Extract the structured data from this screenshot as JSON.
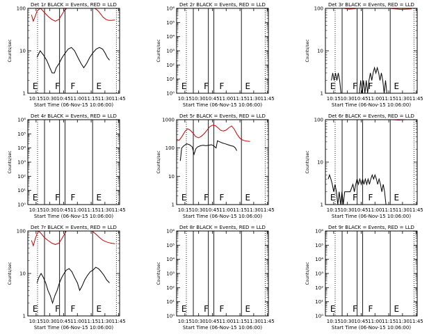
{
  "figure": {
    "xlabel": "Start Time (06-Nov-15 10:06:00)",
    "ylabel": "Counts/sec",
    "x_ticks": [
      "10:15",
      "10:30",
      "10:45",
      "11:00",
      "11:15",
      "11:30",
      "11:45"
    ]
  },
  "colors": {
    "events": "#000000",
    "lld": "#cc0000",
    "axes": "#000000",
    "background": "#ffffff"
  },
  "chart_data": [
    {
      "title": "Det 1r BLACK = Events, RED = LLD",
      "type": "line",
      "ylog": true,
      "ylim": [
        1,
        100
      ],
      "y_ticks": [
        "1",
        "10",
        "100"
      ],
      "events": [
        [
          10.0,
          7
        ],
        [
          13.5,
          10
        ],
        [
          17.0,
          8
        ],
        [
          20.5,
          6
        ],
        [
          24.0,
          4
        ],
        [
          26.5,
          3
        ],
        [
          29.0,
          3
        ],
        [
          31.0,
          4
        ],
        [
          34.0,
          5
        ],
        [
          37.5,
          7
        ],
        [
          41.0,
          9
        ],
        [
          44.0,
          11
        ],
        [
          47.5,
          12
        ],
        [
          51.0,
          10
        ],
        [
          54.5,
          7
        ],
        [
          58.0,
          5
        ],
        [
          61.0,
          4
        ],
        [
          64.0,
          5
        ],
        [
          67.5,
          7
        ],
        [
          71.0,
          9
        ],
        [
          74.5,
          11
        ],
        [
          78.0,
          12
        ],
        [
          81.5,
          11
        ],
        [
          84.0,
          9
        ],
        [
          86.5,
          7
        ],
        [
          89.0,
          6
        ]
      ],
      "lld": [
        [
          4.0,
          70
        ],
        [
          6.0,
          50
        ],
        [
          8.0,
          65
        ],
        [
          10.0,
          85
        ],
        [
          12.0,
          95
        ],
        [
          14.0,
          100
        ],
        [
          18.0,
          80
        ],
        [
          22.0,
          65
        ],
        [
          26.0,
          55
        ],
        [
          30.0,
          50
        ],
        [
          34.0,
          55
        ],
        [
          37.0,
          70
        ],
        [
          40.0,
          90
        ],
        [
          42.5,
          100
        ],
        [
          73.0,
          100
        ],
        [
          76.0,
          90
        ],
        [
          79.0,
          75
        ],
        [
          82.0,
          62
        ],
        [
          85.0,
          55
        ],
        [
          88.0,
          52
        ],
        [
          91.0,
          52
        ],
        [
          95.0,
          53
        ]
      ],
      "markers": [
        {
          "label": "E",
          "time": 5.2
        },
        {
          "label": "F",
          "time": 29.6
        },
        {
          "label": "F",
          "time": 46.6
        },
        {
          "label": "E",
          "time": 74.6
        }
      ],
      "dotted": [
        10.6,
        96.5
      ],
      "solid": [
        18.2,
        34.6,
        40.6,
        70.6
      ]
    },
    {
      "title": "Det 2r BLACK = Events, RED = LLD",
      "type": "line",
      "ylog": true,
      "ylim": [
        1,
        1000000
      ],
      "y_ticks": [
        "10⁰",
        "10¹",
        "10²",
        "10³",
        "10⁴",
        "10⁵",
        "10⁶"
      ],
      "events": [],
      "lld": [],
      "markers": [
        {
          "label": "E",
          "time": 5.2
        },
        {
          "label": "F",
          "time": 29.6
        },
        {
          "label": "F",
          "time": 46.6
        },
        {
          "label": "E",
          "time": 74.6
        }
      ],
      "dotted": [
        10.6,
        96.5
      ],
      "solid": [
        18.2,
        34.6,
        40.6,
        70.6
      ]
    },
    {
      "title": "Det 3r BLACK = Events, RED = LLD",
      "type": "line",
      "ylog": true,
      "ylim": [
        1,
        100
      ],
      "y_ticks": [
        "1",
        "10",
        "100"
      ],
      "events": [
        [
          6.5,
          2
        ],
        [
          8.0,
          3
        ],
        [
          9.5,
          2
        ],
        [
          11.0,
          3
        ],
        [
          12.5,
          2
        ],
        [
          14.0,
          3
        ],
        [
          15.5,
          2
        ],
        [
          17.0,
          1
        ],
        [
          18.5,
          1
        ],
        [
          37.0,
          1
        ],
        [
          38.5,
          2
        ],
        [
          40.0,
          1
        ],
        [
          41.5,
          2
        ],
        [
          43.0,
          1
        ],
        [
          44.5,
          2
        ],
        [
          46.0,
          1
        ],
        [
          47.5,
          2
        ],
        [
          49.0,
          3
        ],
        [
          50.5,
          2
        ],
        [
          52.0,
          3
        ],
        [
          53.5,
          4
        ],
        [
          55.0,
          3
        ],
        [
          56.5,
          4
        ],
        [
          58.0,
          3
        ],
        [
          59.5,
          2
        ],
        [
          61.0,
          3
        ],
        [
          62.5,
          2
        ],
        [
          64.0,
          1
        ],
        [
          65.5,
          2
        ],
        [
          67.0,
          1
        ]
      ],
      "lld": [
        [
          20.0,
          100
        ],
        [
          26.0,
          96
        ],
        [
          32.0,
          98
        ],
        [
          34.0,
          100
        ],
        [
          70.0,
          100
        ],
        [
          76.0,
          97
        ],
        [
          82.0,
          95
        ],
        [
          88.0,
          96
        ],
        [
          94.0,
          97
        ]
      ],
      "markers": [
        {
          "label": "E",
          "time": 5.2
        },
        {
          "label": "F",
          "time": 29.6
        },
        {
          "label": "F",
          "time": 46.6
        },
        {
          "label": "E",
          "time": 74.6
        }
      ],
      "dotted": [
        10.6,
        96.5
      ],
      "solid": [
        18.2,
        34.6,
        40.6,
        70.6
      ]
    },
    {
      "title": "Det 4r BLACK = Events, RED = LLD",
      "type": "line",
      "ylog": true,
      "ylim": [
        1,
        1000000
      ],
      "y_ticks": [
        "10⁰",
        "10¹",
        "10²",
        "10³",
        "10⁴",
        "10⁵",
        "10⁶"
      ],
      "events": [],
      "lld": [],
      "markers": [
        {
          "label": "E",
          "time": 5.2
        },
        {
          "label": "F",
          "time": 29.6
        },
        {
          "label": "F",
          "time": 46.6
        },
        {
          "label": "E",
          "time": 74.6
        }
      ],
      "dotted": [
        10.6,
        96.5
      ],
      "solid": [
        18.2,
        34.6,
        40.6,
        70.6
      ]
    },
    {
      "title": "Det 5r BLACK = Events, RED = LLD",
      "type": "line",
      "ylog": true,
      "ylim": [
        1,
        1000
      ],
      "y_ticks": [
        "1",
        "10",
        "100",
        "1000"
      ],
      "events": [
        [
          4.0,
          35
        ],
        [
          5.5,
          100
        ],
        [
          8.0,
          120
        ],
        [
          11.0,
          140
        ],
        [
          14.0,
          130
        ],
        [
          17.0,
          110
        ],
        [
          19.0,
          60
        ],
        [
          21.0,
          95
        ],
        [
          23.0,
          110
        ],
        [
          26.0,
          120
        ],
        [
          29.0,
          125
        ],
        [
          32.0,
          120
        ],
        [
          35.0,
          125
        ],
        [
          38.0,
          130
        ],
        [
          41.0,
          115
        ],
        [
          43.0,
          100
        ],
        [
          44.5,
          180
        ],
        [
          47.0,
          165
        ],
        [
          50.0,
          150
        ],
        [
          53.0,
          140
        ],
        [
          56.0,
          130
        ],
        [
          59.0,
          120
        ],
        [
          62.0,
          115
        ],
        [
          64.0,
          100
        ],
        [
          65.5,
          80
        ]
      ],
      "lld": [
        [
          0.0,
          180
        ],
        [
          3.0,
          190
        ],
        [
          6.0,
          260
        ],
        [
          9.0,
          380
        ],
        [
          12.0,
          480
        ],
        [
          15.0,
          420
        ],
        [
          18.0,
          330
        ],
        [
          21.0,
          250
        ],
        [
          24.0,
          230
        ],
        [
          27.0,
          260
        ],
        [
          30.0,
          320
        ],
        [
          33.0,
          420
        ],
        [
          36.0,
          560
        ],
        [
          39.0,
          640
        ],
        [
          42.0,
          620
        ],
        [
          45.0,
          520
        ],
        [
          48.0,
          420
        ],
        [
          51.0,
          400
        ],
        [
          54.0,
          430
        ],
        [
          57.0,
          520
        ],
        [
          60.0,
          600
        ],
        [
          63.0,
          450
        ],
        [
          66.0,
          300
        ],
        [
          69.0,
          220
        ],
        [
          72.0,
          190
        ],
        [
          76.0,
          175
        ],
        [
          80.0,
          170
        ]
      ],
      "markers": [
        {
          "label": "E",
          "time": 5.2
        },
        {
          "label": "F",
          "time": 29.6
        },
        {
          "label": "F",
          "time": 46.6
        },
        {
          "label": "E",
          "time": 74.6
        }
      ],
      "dotted": [
        10.6,
        96.5
      ],
      "solid": [
        18.2,
        34.6,
        40.6,
        70.6
      ]
    },
    {
      "title": "Det 6r BLACK = Events, RED = LLD",
      "type": "line",
      "ylog": true,
      "ylim": [
        1,
        100
      ],
      "y_ticks": [
        "1",
        "10",
        "100"
      ],
      "events": [
        [
          3.0,
          4
        ],
        [
          4.5,
          5
        ],
        [
          6.0,
          4
        ],
        [
          7.5,
          3
        ],
        [
          9.0,
          2
        ],
        [
          10.5,
          3
        ],
        [
          12.0,
          2
        ],
        [
          13.5,
          1
        ],
        [
          15.0,
          2
        ],
        [
          16.5,
          1
        ],
        [
          18.0,
          2
        ],
        [
          19.5,
          1
        ],
        [
          21.0,
          2
        ],
        [
          24.0,
          2
        ],
        [
          27.0,
          2
        ],
        [
          30.0,
          3
        ],
        [
          31.5,
          2
        ],
        [
          33.0,
          3
        ],
        [
          34.5,
          4
        ],
        [
          36.0,
          3
        ],
        [
          37.5,
          4
        ],
        [
          39.0,
          3
        ],
        [
          40.5,
          4
        ],
        [
          42.0,
          3
        ],
        [
          43.5,
          4
        ],
        [
          45.0,
          3
        ],
        [
          46.5,
          4
        ],
        [
          48.0,
          3
        ],
        [
          49.5,
          4
        ],
        [
          51.0,
          5
        ],
        [
          52.5,
          4
        ],
        [
          54.0,
          5
        ],
        [
          55.5,
          4
        ],
        [
          57.0,
          3
        ],
        [
          58.5,
          4
        ],
        [
          60.0,
          3
        ],
        [
          61.5,
          2
        ],
        [
          63.0,
          3
        ],
        [
          64.5,
          2
        ],
        [
          66.0,
          1
        ]
      ],
      "lld": [
        [
          72.0,
          100
        ],
        [
          80.0,
          98
        ],
        [
          88.0,
          100
        ]
      ],
      "markers": [
        {
          "label": "E",
          "time": 5.2
        },
        {
          "label": "F",
          "time": 29.6
        },
        {
          "label": "F",
          "time": 46.6
        },
        {
          "label": "E",
          "time": 74.6
        }
      ],
      "dotted": [
        10.6,
        96.5
      ],
      "solid": [
        18.2,
        34.6,
        40.6,
        70.6
      ]
    },
    {
      "title": "Det 7r BLACK = Events, RED = LLD",
      "type": "line",
      "ylog": true,
      "ylim": [
        1,
        100
      ],
      "y_ticks": [
        "1",
        "10",
        "100"
      ],
      "events": [
        [
          10.0,
          6
        ],
        [
          12.0,
          8
        ],
        [
          14.5,
          10
        ],
        [
          17.0,
          8
        ],
        [
          19.5,
          6
        ],
        [
          22.0,
          4
        ],
        [
          24.5,
          3
        ],
        [
          27.0,
          2
        ],
        [
          29.5,
          3
        ],
        [
          32.0,
          4
        ],
        [
          34.5,
          6
        ],
        [
          37.0,
          8
        ],
        [
          39.5,
          10
        ],
        [
          42.0,
          12
        ],
        [
          45.0,
          13
        ],
        [
          48.0,
          11
        ],
        [
          51.0,
          8
        ],
        [
          54.0,
          6
        ],
        [
          56.5,
          4
        ],
        [
          59.0,
          5
        ],
        [
          62.0,
          7
        ],
        [
          65.0,
          9
        ],
        [
          68.0,
          11
        ],
        [
          71.0,
          12
        ],
        [
          74.0,
          14
        ],
        [
          77.0,
          13
        ],
        [
          80.0,
          11
        ],
        [
          83.0,
          9
        ],
        [
          86.0,
          7
        ],
        [
          89.0,
          6
        ]
      ],
      "lld": [
        [
          4.0,
          60
        ],
        [
          6.0,
          45
        ],
        [
          8.0,
          65
        ],
        [
          10.0,
          85
        ],
        [
          12.0,
          100
        ],
        [
          15.0,
          85
        ],
        [
          18.0,
          70
        ],
        [
          22.0,
          60
        ],
        [
          26.0,
          52
        ],
        [
          30.0,
          48
        ],
        [
          34.0,
          52
        ],
        [
          37.0,
          65
        ],
        [
          40.0,
          85
        ],
        [
          42.0,
          100
        ],
        [
          70.0,
          100
        ],
        [
          74.0,
          85
        ],
        [
          78.0,
          70
        ],
        [
          82.0,
          60
        ],
        [
          86.0,
          55
        ],
        [
          90.0,
          52
        ],
        [
          95.0,
          50
        ]
      ],
      "markers": [
        {
          "label": "E",
          "time": 5.2
        },
        {
          "label": "F",
          "time": 29.6
        },
        {
          "label": "F",
          "time": 46.6
        },
        {
          "label": "E",
          "time": 74.6
        }
      ],
      "dotted": [
        10.6,
        96.5
      ],
      "solid": [
        18.2,
        34.6,
        40.6,
        70.6
      ]
    },
    {
      "title": "Det 8r BLACK = Events, RED = LLD",
      "type": "line",
      "ylog": true,
      "ylim": [
        1,
        1000000
      ],
      "y_ticks": [
        "10⁰",
        "10¹",
        "10²",
        "10³",
        "10⁴",
        "10⁵",
        "10⁶"
      ],
      "events": [],
      "lld": [],
      "markers": [
        {
          "label": "E",
          "time": 5.2
        },
        {
          "label": "F",
          "time": 29.6
        },
        {
          "label": "F",
          "time": 46.6
        },
        {
          "label": "E",
          "time": 74.6
        }
      ],
      "dotted": [
        10.6,
        96.5
      ],
      "solid": [
        18.2,
        34.6,
        40.6,
        70.6
      ]
    },
    {
      "title": "Det 9r BLACK = Events, RED = LLD",
      "type": "line",
      "ylog": true,
      "ylim": [
        1,
        1000000
      ],
      "y_ticks": [
        "10⁰",
        "10¹",
        "10²",
        "10³",
        "10⁴",
        "10⁵",
        "10⁶"
      ],
      "events": [],
      "lld": [],
      "markers": [
        {
          "label": "E",
          "time": 5.2
        },
        {
          "label": "F",
          "time": 29.6
        },
        {
          "label": "F",
          "time": 46.6
        },
        {
          "label": "E",
          "time": 74.6
        }
      ],
      "dotted": [
        10.6,
        96.5
      ],
      "solid": [
        18.2,
        34.6,
        40.6,
        70.6
      ]
    }
  ]
}
